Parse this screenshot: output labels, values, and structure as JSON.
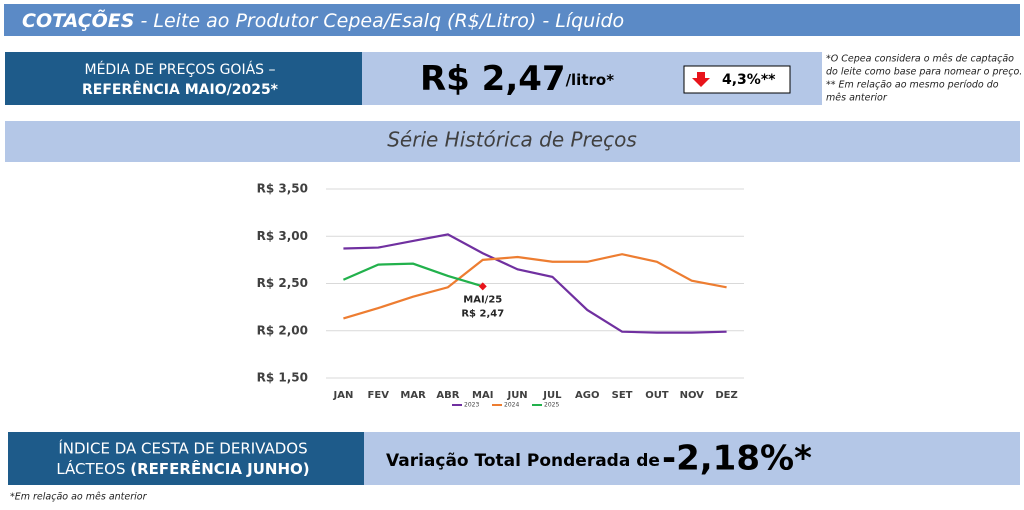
{
  "header": {
    "title": "COTAÇÕES",
    "subtitle": " - Leite ao Produtor Cepea/Esalq (R$/Litro) - Líquido"
  },
  "summary": {
    "label_line1": "MÉDIA DE PREÇOS GOIÁS –",
    "label_line2": "REFERÊNCIA MAIO/2025*",
    "price": "R$ 2,47",
    "unit": "/litro*",
    "change": "4,3%**",
    "notes": [
      "*O Cepea considera o mês de captação",
      "do leite como base para nomear o preço.",
      "** Em relação ao mesmo período do",
      "mês anterior"
    ]
  },
  "chart_data": {
    "type": "line",
    "title": "Série Histórica de Preços",
    "categories": [
      "JAN",
      "FEV",
      "MAR",
      "ABR",
      "MAI",
      "JUN",
      "JUL",
      "AGO",
      "SET",
      "OUT",
      "NOV",
      "DEZ"
    ],
    "series": [
      {
        "name": "2023",
        "color": "#7030a0",
        "values": [
          2.87,
          2.88,
          2.95,
          3.02,
          2.82,
          2.65,
          2.57,
          2.22,
          1.99,
          1.98,
          1.98,
          1.99
        ]
      },
      {
        "name": "2024",
        "color": "#ed7d31",
        "values": [
          2.13,
          2.24,
          2.36,
          2.46,
          2.75,
          2.78,
          2.73,
          2.73,
          2.81,
          2.73,
          2.53,
          2.46
        ]
      },
      {
        "name": "2025",
        "color": "#22b14c",
        "values": [
          2.54,
          2.7,
          2.71,
          2.58,
          2.47,
          null,
          null,
          null,
          null,
          null,
          null,
          null
        ]
      }
    ],
    "ylim": [
      1.5,
      3.5
    ],
    "yticks": [
      {
        "value": 1.5,
        "label": "R$ 1,50"
      },
      {
        "value": 2.0,
        "label": "R$ 2,00"
      },
      {
        "value": 2.5,
        "label": "R$ 2,50"
      },
      {
        "value": 3.0,
        "label": "R$ 3,00"
      },
      {
        "value": 3.5,
        "label": "R$ 3,50"
      }
    ],
    "grid": true,
    "legend": "bottom",
    "highlight_color": "#e8141b",
    "annotations": [
      "MAI/25",
      "R$ 2,47"
    ]
  },
  "footer": {
    "label_line1": "ÍNDICE DA CESTA DE DERIVADOS",
    "label_line2a": "LÁCTEOS ",
    "label_line2b": "(REFERÊNCIA JUNHO)",
    "variation_label": "Variação Total Ponderada de",
    "variation": "-2,18%*",
    "note": "*Em relação ao mês anterior"
  }
}
